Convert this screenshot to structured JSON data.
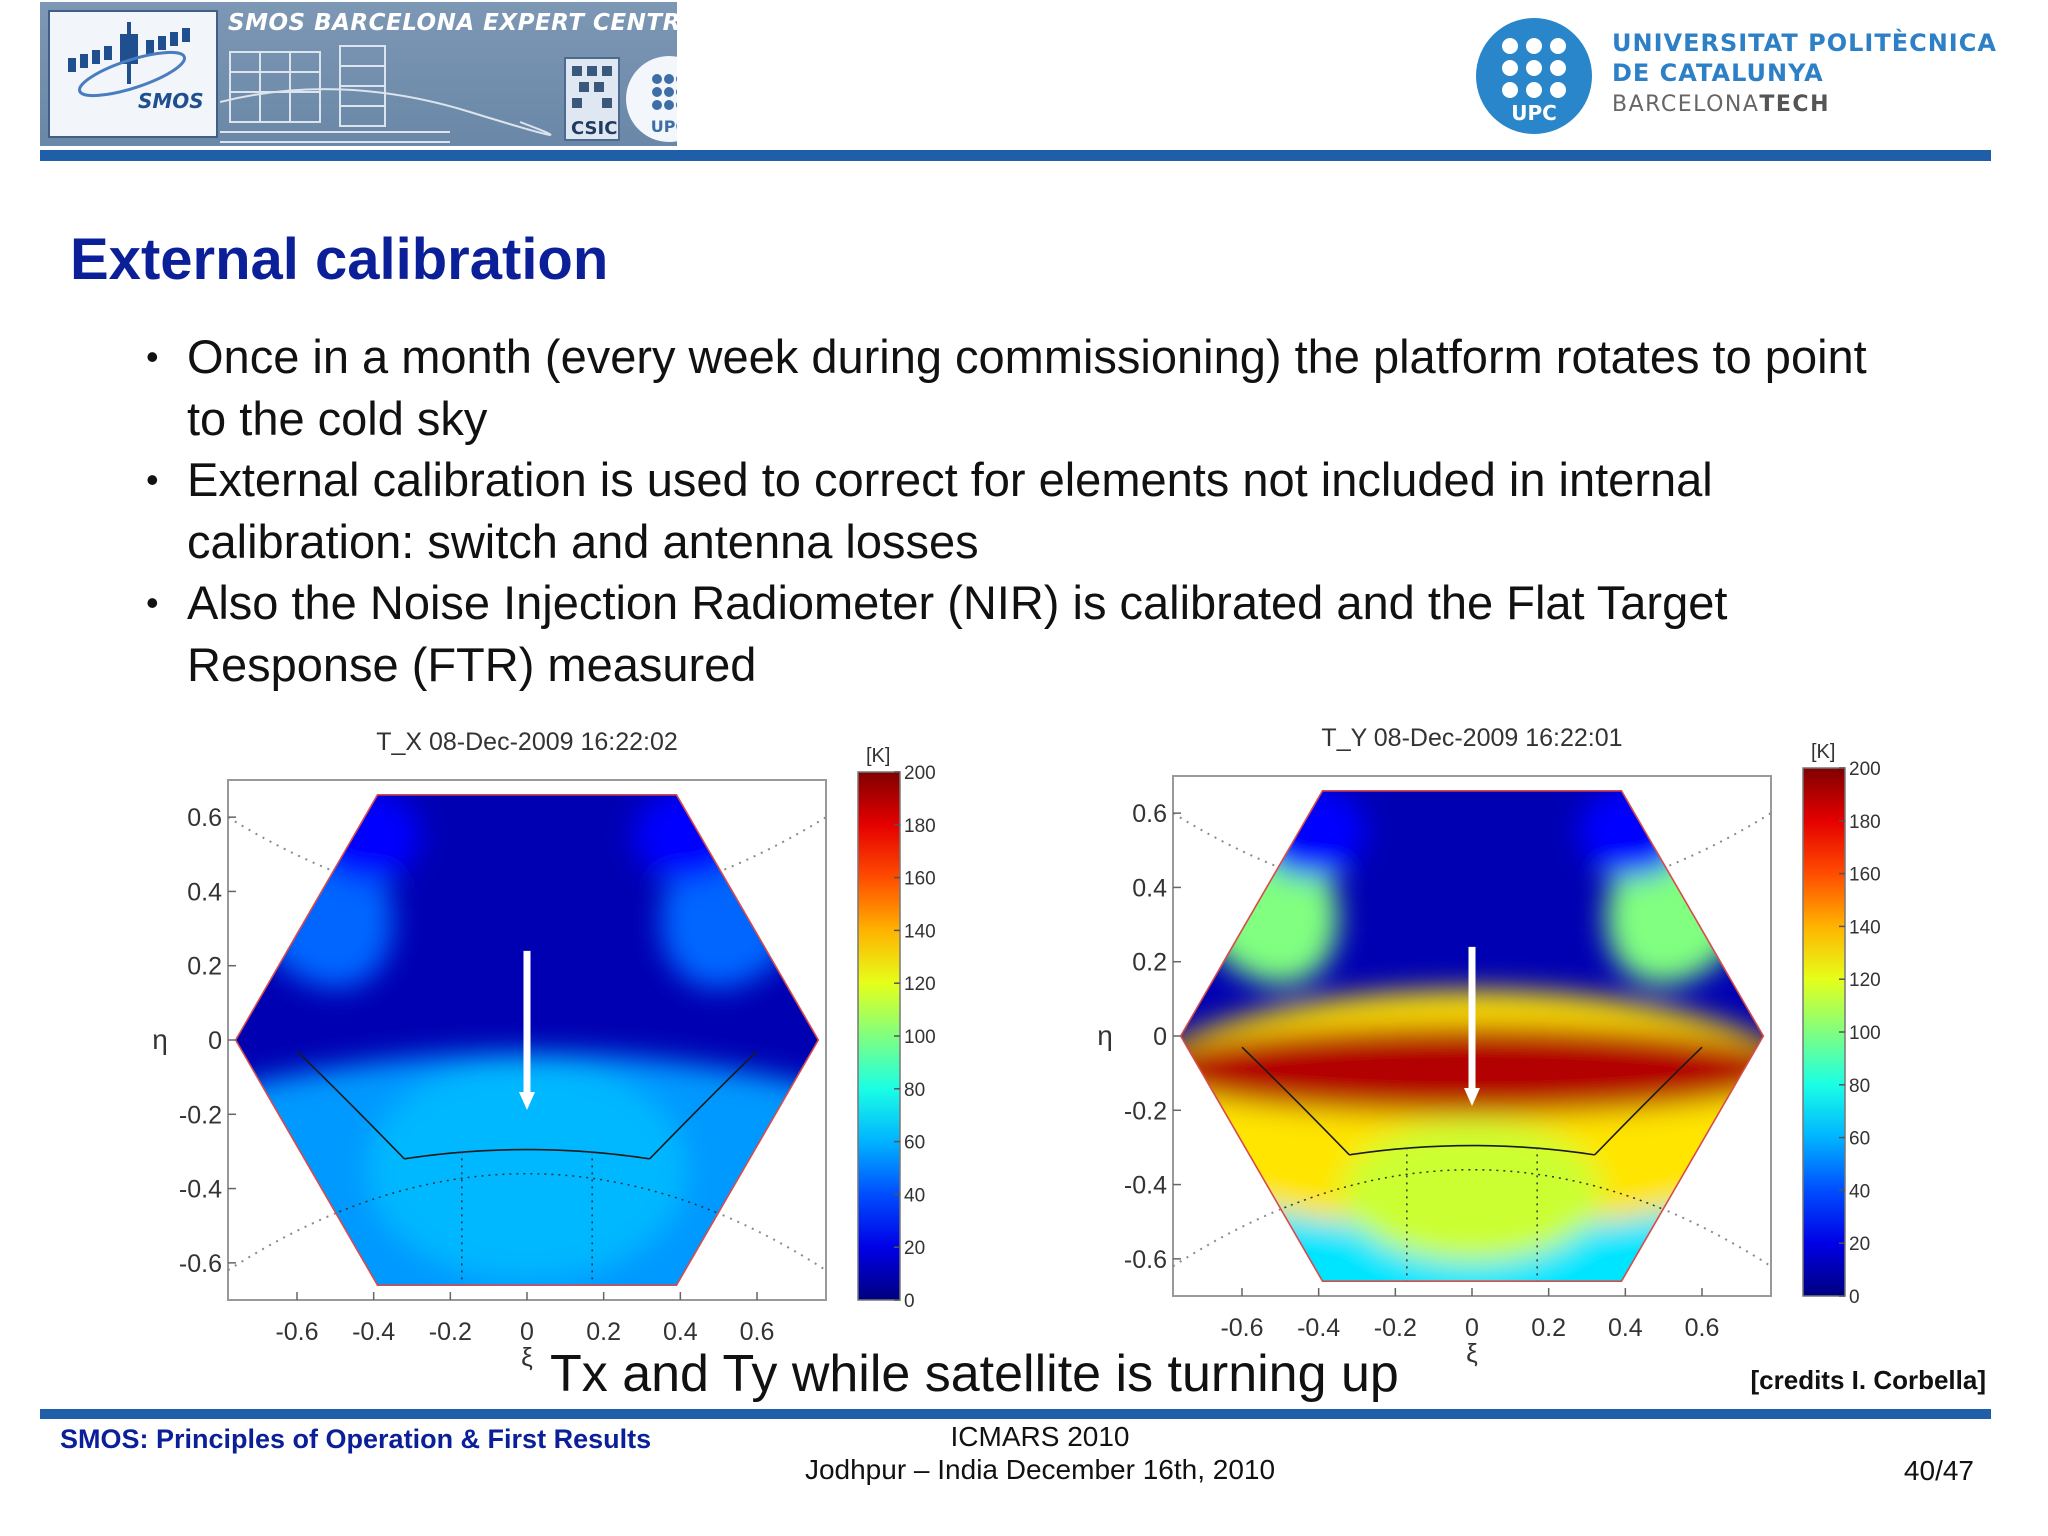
{
  "header": {
    "banner_title": "SMOS BARCELONA EXPERT CENTRE",
    "smos_logo_text": "SMOS",
    "csic_text": "CSIC",
    "upc_badge_text": "UPC",
    "university_line1": "UNIVERSITAT POLITÈCNICA",
    "university_line2": "DE CATALUNYA",
    "university_line3_a": "BARCELONA",
    "university_line3_b": "TECH"
  },
  "slide": {
    "title": "External calibration",
    "bullets": [
      "Once in a month (every week during commissioning) the platform rotates to point to the cold sky",
      "External calibration is used to correct for elements not included in internal calibration: switch and antenna losses",
      "Also the Noise Injection Radiometer (NIR) is calibrated and the Flat Target Response (FTR) measured"
    ],
    "caption": "Tx and Ty while satellite is turning up",
    "credits": "[credits I. Corbella]"
  },
  "chart_data": [
    {
      "type": "heatmap",
      "title": "T_X 08-Dec-2009 16:22:02",
      "xlabel": "ξ",
      "ylabel": "η",
      "x_ticks": [
        "-0.6",
        "-0.4",
        "-0.2",
        "0",
        "0.2",
        "0.4",
        "0.6"
      ],
      "y_ticks": [
        "0.6",
        "0.4",
        "0.2",
        "0",
        "-0.2",
        "-0.4",
        "-0.6"
      ],
      "xlim": [
        -0.78,
        0.78
      ],
      "ylim": [
        -0.7,
        0.7
      ],
      "colorbar_label": "[K]",
      "colorbar_ticks": [
        "200",
        "180",
        "160",
        "140",
        "120",
        "100",
        "80",
        "60",
        "40",
        "20",
        "0"
      ],
      "clim": [
        0,
        200
      ],
      "regions": [
        {
          "region": "upper hexagon (cold sky)",
          "approx_value_K": 10
        },
        {
          "region": "upper lobes",
          "approx_value_K": 45
        },
        {
          "region": "lower hexagon (Earth)",
          "approx_value_K": 55
        }
      ],
      "annotation": "arrow pointing down"
    },
    {
      "type": "heatmap",
      "title": "T_Y 08-Dec-2009 16:22:01",
      "xlabel": "ξ",
      "ylabel": "η",
      "x_ticks": [
        "-0.6",
        "-0.4",
        "-0.2",
        "0",
        "0.2",
        "0.4",
        "0.6"
      ],
      "y_ticks": [
        "0.6",
        "0.4",
        "0.2",
        "0",
        "-0.2",
        "-0.4",
        "-0.6"
      ],
      "xlim": [
        -0.78,
        0.78
      ],
      "ylim": [
        -0.7,
        0.7
      ],
      "colorbar_label": "[K]",
      "colorbar_ticks": [
        "200",
        "180",
        "160",
        "140",
        "120",
        "100",
        "80",
        "60",
        "40",
        "20",
        "0"
      ],
      "clim": [
        0,
        200
      ],
      "regions": [
        {
          "region": "upper hexagon (cold sky)",
          "approx_value_K": 10
        },
        {
          "region": "upper lobes",
          "approx_value_K": 100
        },
        {
          "region": "horizon band",
          "approx_value_K": 190
        },
        {
          "region": "lower middle",
          "approx_value_K": 130
        },
        {
          "region": "bottom",
          "approx_value_K": 70
        }
      ],
      "annotation": "arrow pointing down"
    }
  ],
  "footer": {
    "left": "SMOS: Principles of Operation & First Results",
    "center_line1": "ICMARS 2010",
    "center_line2": "Jodhpur – India December 16th, 2010",
    "page": "40/47"
  }
}
